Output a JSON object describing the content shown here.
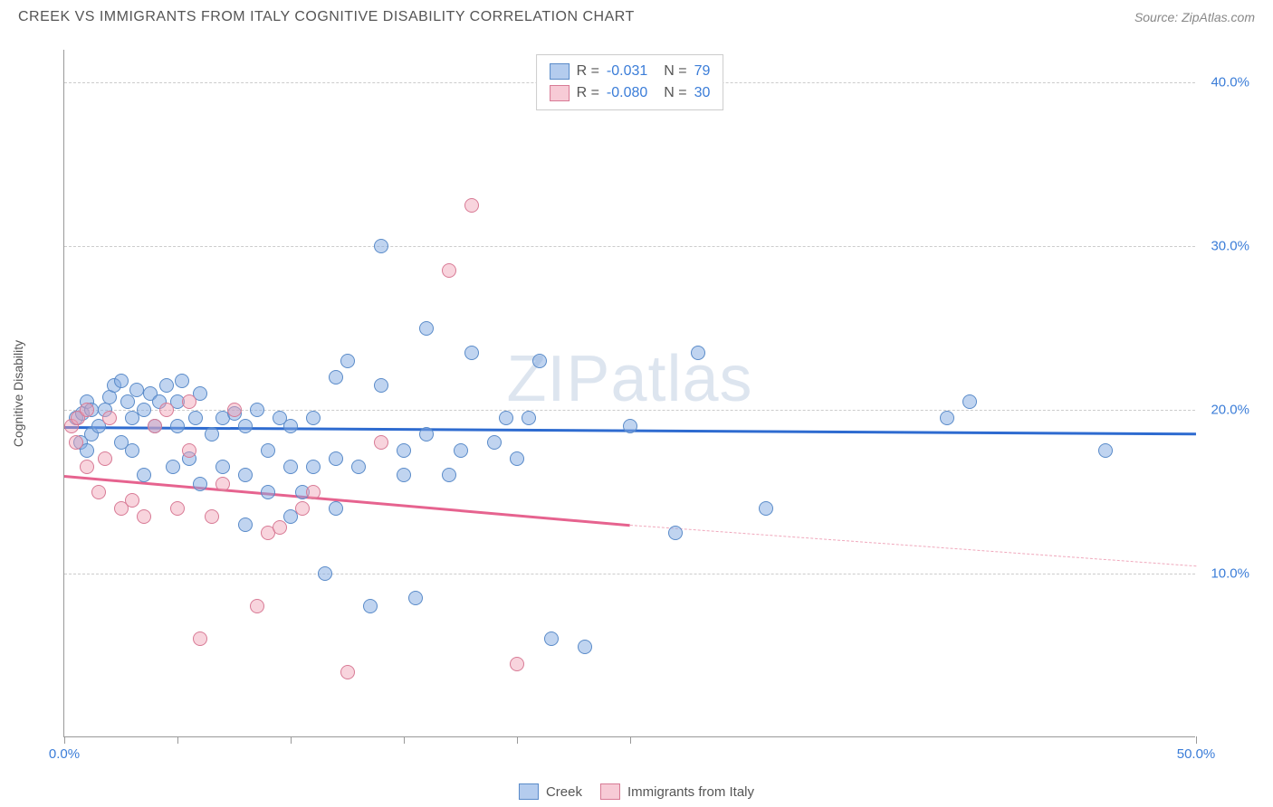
{
  "header": {
    "title": "CREEK VS IMMIGRANTS FROM ITALY COGNITIVE DISABILITY CORRELATION CHART",
    "source": "Source: ZipAtlas.com"
  },
  "chart": {
    "type": "scatter",
    "ylabel": "Cognitive Disability",
    "xlim": [
      0,
      50
    ],
    "ylim": [
      0,
      42
    ],
    "x_ticks": [
      0,
      5,
      10,
      15,
      20,
      25,
      50
    ],
    "x_tick_labels": {
      "0": "0.0%",
      "50": "50.0%"
    },
    "y_gridlines": [
      10,
      20,
      30,
      40
    ],
    "y_tick_labels": {
      "10": "10.0%",
      "20": "20.0%",
      "30": "30.0%",
      "40": "40.0%"
    },
    "grid_color": "#cccccc",
    "axis_color": "#999999",
    "background_color": "#ffffff",
    "watermark": "ZIPatlas",
    "series": [
      {
        "name": "Creek",
        "color_fill": "#82aae2",
        "color_stroke": "#5a8bc9",
        "trend_color": "#2e6bd0",
        "r": "-0.031",
        "n": "79",
        "trend": {
          "x1": 0,
          "y1": 19.0,
          "x2": 50,
          "y2": 18.6
        },
        "points": [
          [
            0.5,
            19.5
          ],
          [
            0.7,
            18.0
          ],
          [
            0.8,
            19.8
          ],
          [
            1.0,
            17.5
          ],
          [
            1.0,
            20.5
          ],
          [
            1.2,
            18.5
          ],
          [
            1.2,
            20.0
          ],
          [
            1.5,
            19.0
          ],
          [
            1.8,
            20.0
          ],
          [
            2.0,
            20.8
          ],
          [
            2.2,
            21.5
          ],
          [
            2.5,
            18.0
          ],
          [
            2.5,
            21.8
          ],
          [
            2.8,
            20.5
          ],
          [
            3.0,
            17.5
          ],
          [
            3.0,
            19.5
          ],
          [
            3.2,
            21.2
          ],
          [
            3.5,
            16.0
          ],
          [
            3.5,
            20.0
          ],
          [
            3.8,
            21.0
          ],
          [
            4.0,
            19.0
          ],
          [
            4.2,
            20.5
          ],
          [
            4.5,
            21.5
          ],
          [
            4.8,
            16.5
          ],
          [
            5.0,
            19.0
          ],
          [
            5.0,
            20.5
          ],
          [
            5.2,
            21.8
          ],
          [
            5.5,
            17.0
          ],
          [
            5.8,
            19.5
          ],
          [
            6.0,
            15.5
          ],
          [
            6.0,
            21.0
          ],
          [
            6.5,
            18.5
          ],
          [
            7.0,
            16.5
          ],
          [
            7.0,
            19.5
          ],
          [
            7.5,
            19.8
          ],
          [
            8.0,
            13.0
          ],
          [
            8.0,
            16.0
          ],
          [
            8.0,
            19.0
          ],
          [
            8.5,
            20.0
          ],
          [
            9.0,
            15.0
          ],
          [
            9.0,
            17.5
          ],
          [
            9.5,
            19.5
          ],
          [
            10.0,
            13.5
          ],
          [
            10.0,
            16.5
          ],
          [
            10.0,
            19.0
          ],
          [
            10.5,
            15.0
          ],
          [
            11.0,
            16.5
          ],
          [
            11.0,
            19.5
          ],
          [
            11.5,
            10.0
          ],
          [
            12.0,
            14.0
          ],
          [
            12.0,
            17.0
          ],
          [
            12.0,
            22.0
          ],
          [
            12.5,
            23.0
          ],
          [
            13.0,
            16.5
          ],
          [
            13.5,
            8.0
          ],
          [
            14.0,
            21.5
          ],
          [
            14.0,
            30.0
          ],
          [
            15.0,
            16.0
          ],
          [
            15.0,
            17.5
          ],
          [
            15.5,
            8.5
          ],
          [
            16.0,
            18.5
          ],
          [
            16.0,
            25.0
          ],
          [
            17.0,
            16.0
          ],
          [
            17.5,
            17.5
          ],
          [
            18.0,
            23.5
          ],
          [
            19.0,
            18.0
          ],
          [
            19.5,
            19.5
          ],
          [
            20.0,
            17.0
          ],
          [
            20.5,
            19.5
          ],
          [
            21.0,
            23.0
          ],
          [
            21.5,
            6.0
          ],
          [
            23.0,
            5.5
          ],
          [
            25.0,
            19.0
          ],
          [
            27.0,
            12.5
          ],
          [
            28.0,
            23.5
          ],
          [
            31.0,
            14.0
          ],
          [
            39.0,
            19.5
          ],
          [
            40.0,
            20.5
          ],
          [
            46.0,
            17.5
          ]
        ]
      },
      {
        "name": "Immigrants from Italy",
        "color_fill": "#f0a0b4",
        "color_stroke": "#d87a95",
        "trend_color": "#e6638f",
        "r": "-0.080",
        "n": "30",
        "trend": {
          "x1": 0,
          "y1": 16.0,
          "x2": 25,
          "y2": 13.0
        },
        "trend_extrapolate": {
          "x1": 25,
          "y1": 13.0,
          "x2": 50,
          "y2": 10.5
        },
        "points": [
          [
            0.3,
            19.0
          ],
          [
            0.5,
            18.0
          ],
          [
            0.6,
            19.5
          ],
          [
            1.0,
            16.5
          ],
          [
            1.0,
            20.0
          ],
          [
            1.5,
            15.0
          ],
          [
            1.8,
            17.0
          ],
          [
            2.0,
            19.5
          ],
          [
            2.5,
            14.0
          ],
          [
            3.0,
            14.5
          ],
          [
            3.5,
            13.5
          ],
          [
            4.0,
            19.0
          ],
          [
            4.5,
            20.0
          ],
          [
            5.0,
            14.0
          ],
          [
            5.5,
            17.5
          ],
          [
            5.5,
            20.5
          ],
          [
            6.0,
            6.0
          ],
          [
            6.5,
            13.5
          ],
          [
            7.0,
            15.5
          ],
          [
            7.5,
            20.0
          ],
          [
            8.5,
            8.0
          ],
          [
            9.0,
            12.5
          ],
          [
            9.5,
            12.8
          ],
          [
            10.5,
            14.0
          ],
          [
            11.0,
            15.0
          ],
          [
            12.5,
            4.0
          ],
          [
            14.0,
            18.0
          ],
          [
            17.0,
            28.5
          ],
          [
            18.0,
            32.5
          ],
          [
            20.0,
            4.5
          ]
        ]
      }
    ],
    "legend_bottom": [
      "Creek",
      "Immigrants from Italy"
    ]
  }
}
